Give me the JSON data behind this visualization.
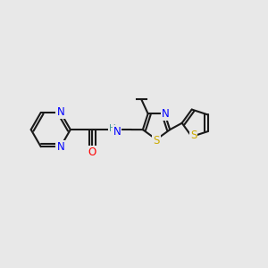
{
  "bg_color": "#e8e8e8",
  "bond_color": "#1a1a1a",
  "N_color": "#0000ff",
  "O_color": "#ff0000",
  "S_color": "#ccaa00",
  "H_color": "#4a9a9a",
  "line_width": 1.5,
  "figsize": [
    3.0,
    3.0
  ],
  "dpi": 100,
  "xlim": [
    0,
    12
  ],
  "ylim": [
    0,
    10
  ]
}
